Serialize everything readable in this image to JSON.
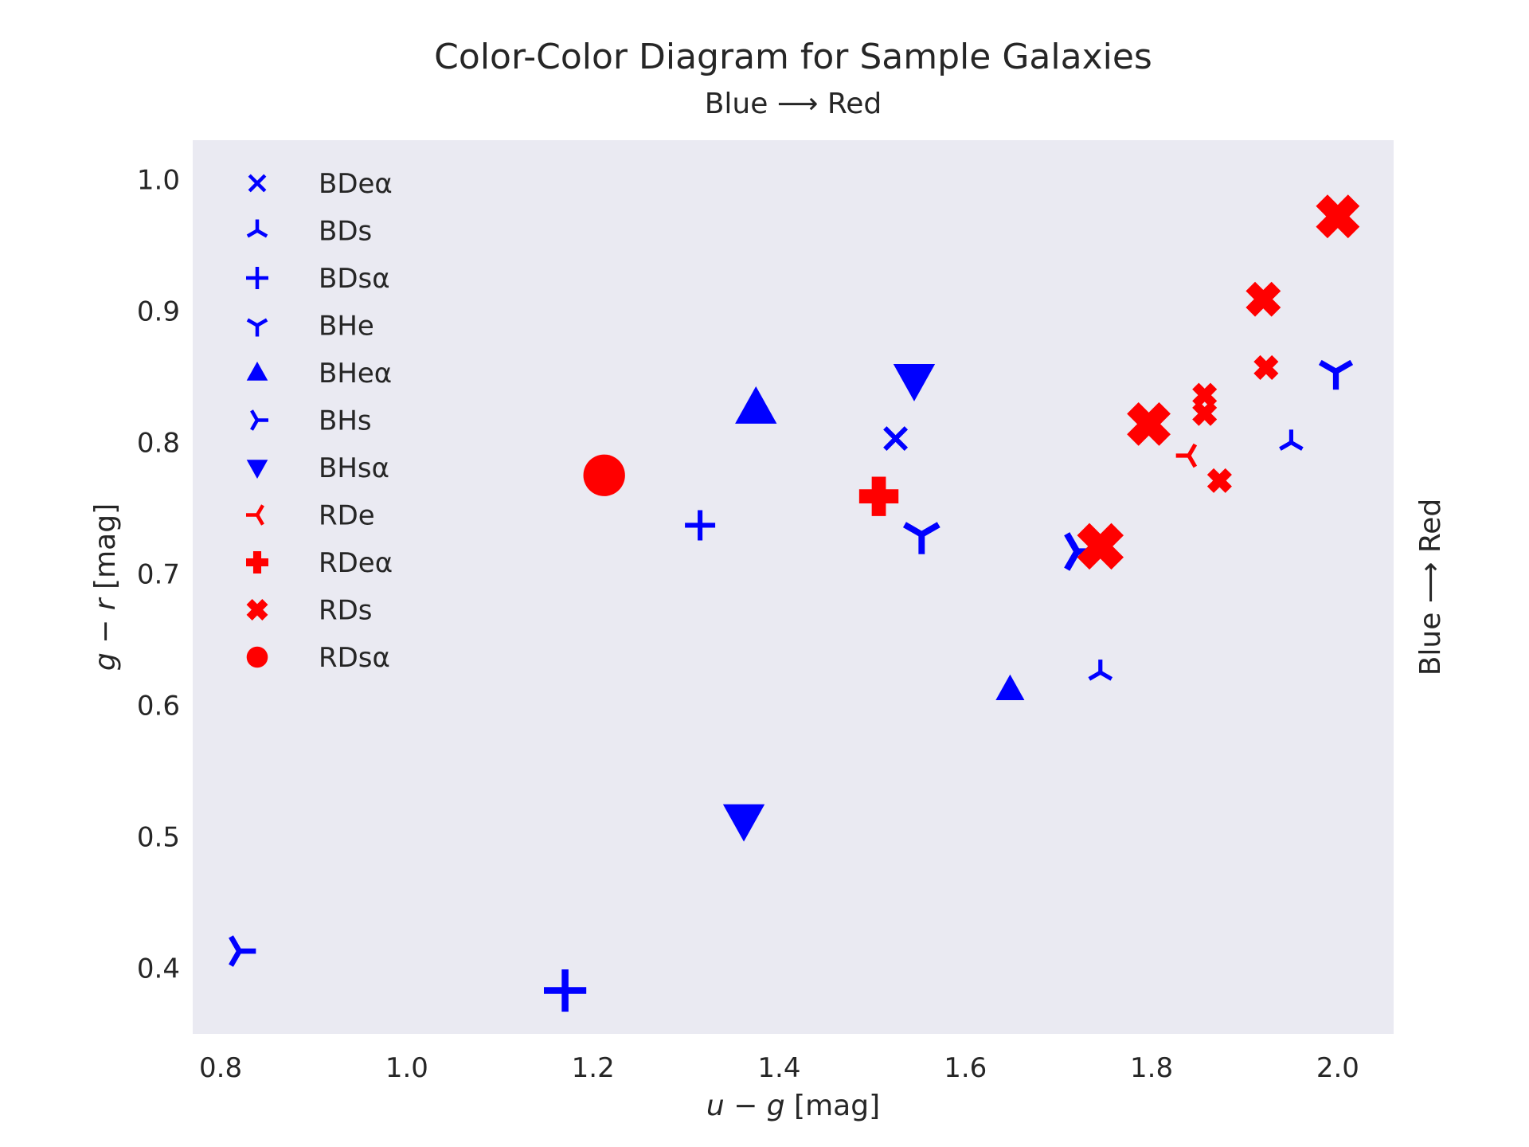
{
  "chart_data": {
    "type": "scatter",
    "title": "Color-Color Diagram for Sample Galaxies",
    "subtitle": "Blue ⟶ Red",
    "right_label": "Blue ⟶ Red",
    "xlabel": {
      "var1": "u",
      "op": " − ",
      "var2": "g",
      "unit": " [mag]"
    },
    "ylabel": {
      "var1": "g",
      "op": " − ",
      "var2": "r",
      "unit": " [mag]"
    },
    "xlim": [
      0.77,
      2.06
    ],
    "ylim": [
      0.35,
      1.03
    ],
    "xticks": [
      "0.8",
      "1.0",
      "1.2",
      "1.4",
      "1.6",
      "1.8",
      "2.0"
    ],
    "yticks": [
      "0.4",
      "0.5",
      "0.6",
      "0.7",
      "0.8",
      "0.9",
      "1.0"
    ],
    "grid": false,
    "legend_position": "upper-left",
    "background": "#eaeaf2",
    "colors": {
      "blue": "#0000ff",
      "red": "#ff0000"
    },
    "series": [
      {
        "name": "BDeα",
        "marker": "x",
        "color": "blue",
        "points": [
          {
            "x": 1.525,
            "y": 0.803,
            "s": 1.0
          }
        ]
      },
      {
        "name": "BDs",
        "marker": "tri_down",
        "color": "blue",
        "points": [
          {
            "x": 1.745,
            "y": 0.625,
            "s": 0.85
          },
          {
            "x": 1.95,
            "y": 0.8,
            "s": 0.85
          }
        ]
      },
      {
        "name": "BDsα",
        "marker": "plus",
        "color": "blue",
        "points": [
          {
            "x": 1.315,
            "y": 0.737,
            "s": 1.0
          },
          {
            "x": 1.17,
            "y": 0.383,
            "s": 1.4
          }
        ]
      },
      {
        "name": "BHe",
        "marker": "tri_up",
        "color": "blue",
        "points": [
          {
            "x": 1.553,
            "y": 0.73,
            "s": 1.3
          },
          {
            "x": 1.998,
            "y": 0.854,
            "s": 1.2
          }
        ]
      },
      {
        "name": "BHeα",
        "marker": "triangle_up",
        "color": "blue",
        "points": [
          {
            "x": 1.375,
            "y": 0.826,
            "s": 1.45
          },
          {
            "x": 1.648,
            "y": 0.612,
            "s": 1.0
          }
        ]
      },
      {
        "name": "BHs",
        "marker": "tri_left",
        "color": "blue",
        "points": [
          {
            "x": 0.82,
            "y": 0.413,
            "s": 1.1
          },
          {
            "x": 1.72,
            "y": 0.717,
            "s": 1.35
          }
        ]
      },
      {
        "name": "BHsα",
        "marker": "triangle_down",
        "color": "blue",
        "points": [
          {
            "x": 1.545,
            "y": 0.848,
            "s": 1.45
          },
          {
            "x": 1.362,
            "y": 0.513,
            "s": 1.45
          }
        ]
      },
      {
        "name": "RDe",
        "marker": "tri_right",
        "color": "red",
        "points": [
          {
            "x": 1.84,
            "y": 0.79,
            "s": 0.85
          }
        ]
      },
      {
        "name": "RDeα",
        "marker": "plus_filled",
        "color": "red",
        "points": [
          {
            "x": 1.507,
            "y": 0.759,
            "s": 1.3
          }
        ]
      },
      {
        "name": "RDs",
        "marker": "x_filled",
        "color": "red",
        "points": [
          {
            "x": 1.745,
            "y": 0.721,
            "s": 1.6
          },
          {
            "x": 1.797,
            "y": 0.814,
            "s": 1.5
          },
          {
            "x": 1.92,
            "y": 0.909,
            "s": 1.2
          },
          {
            "x": 1.923,
            "y": 0.857,
            "s": 0.85
          },
          {
            "x": 1.857,
            "y": 0.836,
            "s": 0.85
          },
          {
            "x": 1.857,
            "y": 0.822,
            "s": 0.85
          },
          {
            "x": 1.873,
            "y": 0.771,
            "s": 0.85
          },
          {
            "x": 2.0,
            "y": 0.972,
            "s": 1.5
          }
        ]
      },
      {
        "name": "RDsα",
        "marker": "circle",
        "color": "red",
        "points": [
          {
            "x": 1.212,
            "y": 0.775,
            "s": 1.45
          }
        ]
      }
    ]
  }
}
